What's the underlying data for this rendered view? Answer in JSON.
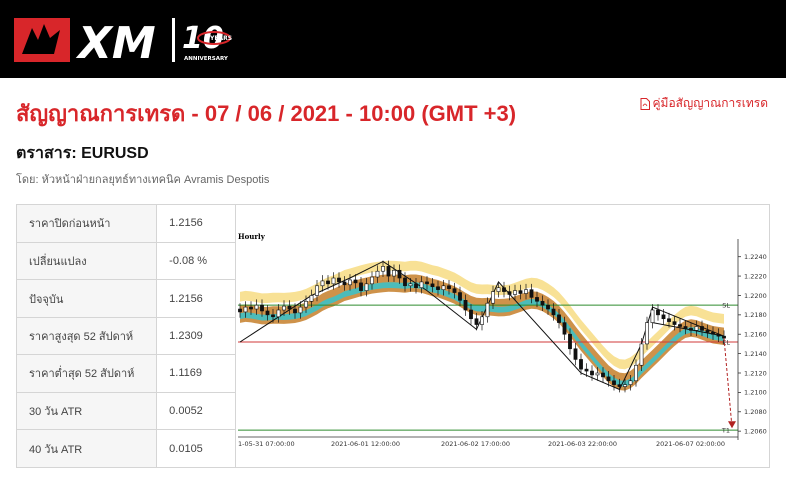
{
  "header": {
    "logo_text": "XM",
    "anniversary_number": "10",
    "anniversary_years": "YEARS",
    "anniversary_label": "ANNIVERSARY"
  },
  "page": {
    "title": "สัญญาณการเทรด - 07 / 06 / 2021 - 10:00 (GMT +3)",
    "guide_link": "คู่มือสัญญาณการเทรด",
    "guide_icon": "pdf-icon",
    "instrument": "ตราสาร: EURUSD",
    "author": "โดย: หัวหน้าฝ่ายกลยุทธ์ทางเทคนิค Avramis Despotis"
  },
  "stats": [
    {
      "label": "ราคาปิดก่อนหน้า",
      "value": "1.2156"
    },
    {
      "label": "เปลี่ยนแปลง",
      "value": "-0.08 %"
    },
    {
      "label": "ปัจจุบัน",
      "value": "1.2156"
    },
    {
      "label": "ราคาสูงสุด 52 สัปดาห์",
      "value": "1.2309"
    },
    {
      "label": "ราคาต่ำสุด 52 สัปดาห์",
      "value": "1.1169"
    },
    {
      "label": "30 วัน ATR",
      "value": "0.0052"
    },
    {
      "label": "40 วัน ATR",
      "value": "0.0105"
    }
  ],
  "chart_data": {
    "type": "candlestick",
    "timeframe_label": "Hourly",
    "x_ticks": [
      "1-05-31 07:00:00",
      "2021-06-01 12:00:00",
      "2021-06-02 17:00:00",
      "2021-06-03 22:00:00",
      "2021-06-07 02:00:00"
    ],
    "y_ticks": [
      "1.2240",
      "1.2220",
      "1.2200",
      "1.2180",
      "1.2160",
      "1.2140",
      "1.2120",
      "1.2100",
      "1.2080",
      "1.2060"
    ],
    "ylim": [
      1.2055,
      1.225
    ],
    "levels": [
      {
        "name": "SL",
        "value": 1.219,
        "color": "#2e8b2e"
      },
      {
        "name": "EL",
        "value": 1.2152,
        "color": "#d23a3a"
      },
      {
        "name": "T1",
        "value": 1.2061,
        "color": "#2e8b2e"
      }
    ],
    "closes": [
      1.2183,
      1.2188,
      1.2186,
      1.219,
      1.2184,
      1.218,
      1.2178,
      1.2185,
      1.2189,
      1.2186,
      1.2182,
      1.2188,
      1.2194,
      1.22,
      1.221,
      1.2215,
      1.2212,
      1.2218,
      1.2214,
      1.2211,
      1.2216,
      1.2213,
      1.2205,
      1.2212,
      1.2219,
      1.2225,
      1.223,
      1.222,
      1.2226,
      1.2218,
      1.221,
      1.2212,
      1.2208,
      1.2214,
      1.2212,
      1.2209,
      1.2206,
      1.221,
      1.2207,
      1.2203,
      1.2195,
      1.2185,
      1.2176,
      1.217,
      1.2178,
      1.2192,
      1.2204,
      1.2208,
      1.2204,
      1.2201,
      1.2205,
      1.2202,
      1.2206,
      1.2198,
      1.2194,
      1.219,
      1.2186,
      1.218,
      1.2172,
      1.216,
      1.2145,
      1.2134,
      1.2124,
      1.2122,
      1.2118,
      1.212,
      1.2116,
      1.2112,
      1.2108,
      1.2106,
      1.2108,
      1.2112,
      1.2128,
      1.215,
      1.2172,
      1.2185,
      1.218,
      1.2176,
      1.2173,
      1.217,
      1.2168,
      1.2166,
      1.2164,
      1.2168,
      1.2164,
      1.2162,
      1.216,
      1.2158,
      1.2156
    ]
  }
}
